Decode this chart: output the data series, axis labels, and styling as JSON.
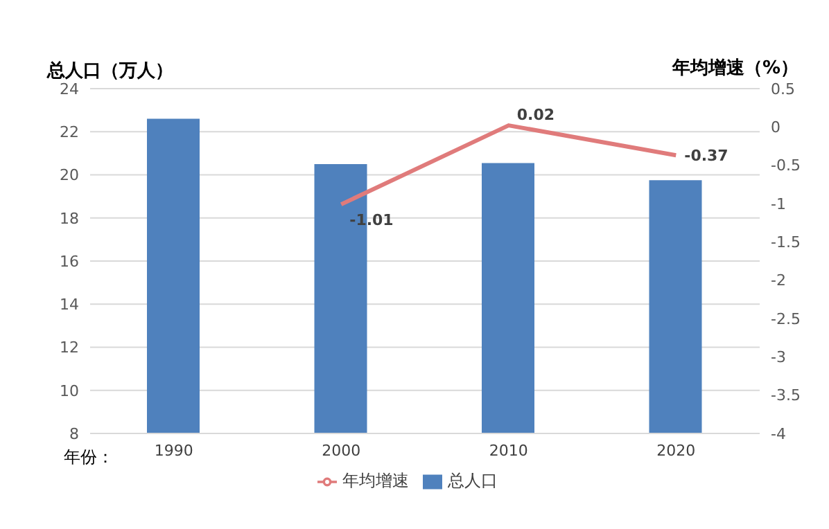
{
  "chart_data": {
    "type": "bar",
    "ylabel": "总人口（万人）",
    "y2label": "年均增速（%）",
    "xlabel": "年份：",
    "categories": [
      "1990",
      "2000",
      "2010",
      "2020"
    ],
    "series": [
      {
        "name": "总人口",
        "color": "#4f81bd",
        "values": [
          22.6,
          20.5,
          20.55,
          19.75
        ]
      },
      {
        "name": "年均增速",
        "type": "line",
        "axis": "y2",
        "color": "#e07b7b",
        "values": [
          null,
          -1.01,
          0.02,
          -0.37
        ],
        "value_labels": [
          null,
          "-1.01",
          "0.02",
          "-0.37"
        ]
      }
    ],
    "ylim": [
      8,
      24
    ],
    "yticks": [
      8,
      10,
      12,
      14,
      16,
      18,
      20,
      22,
      24
    ],
    "y2lim": [
      -4,
      0.5
    ],
    "y2ticks": [
      -4,
      -3.5,
      -3,
      -2.5,
      -2,
      -1.5,
      -1,
      -0.5,
      0,
      0.5
    ],
    "grid": "y",
    "legend": "bottom",
    "marker": "none"
  }
}
